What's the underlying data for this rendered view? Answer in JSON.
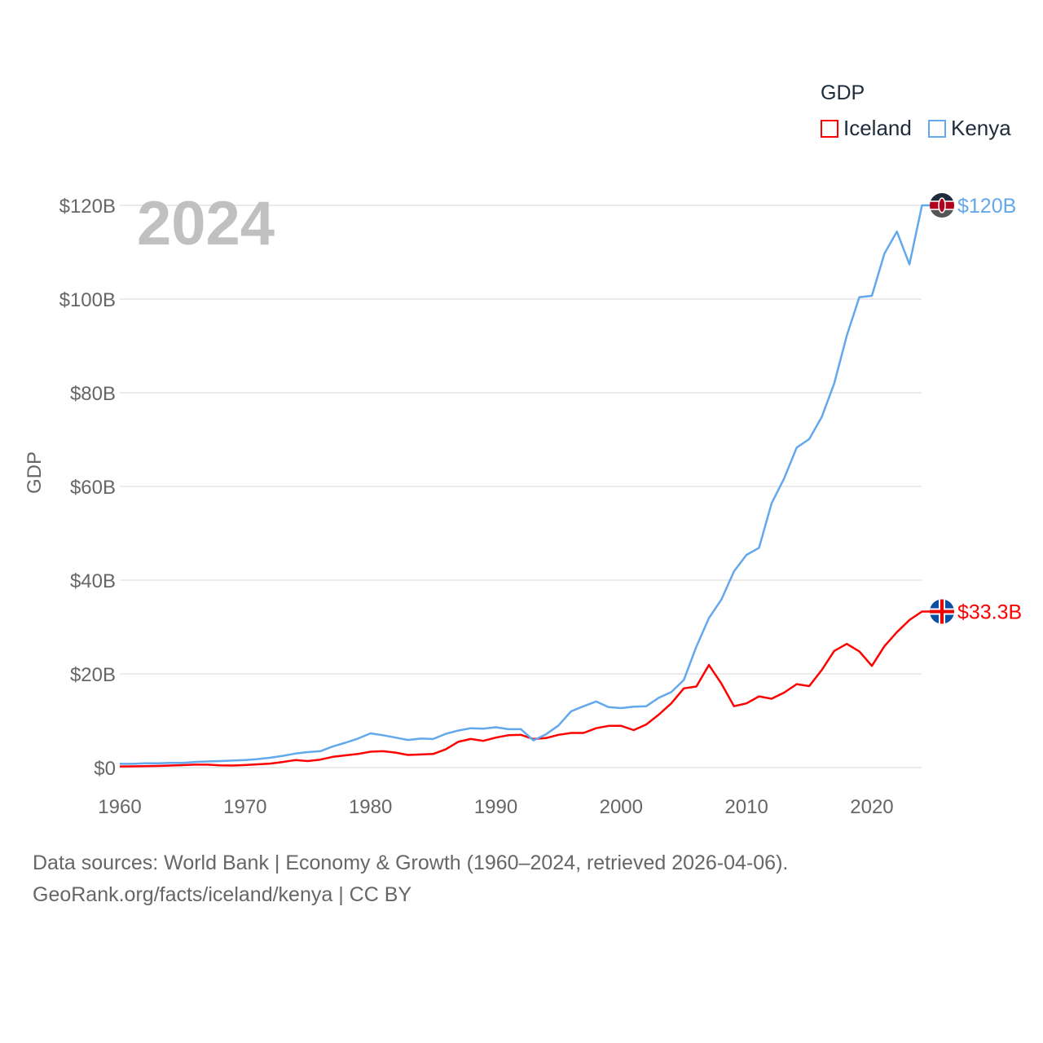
{
  "chart_data": {
    "type": "line",
    "title": "",
    "year_label": "2024",
    "xlabel": "",
    "ylabel": "GDP",
    "xlim": [
      1960,
      2024
    ],
    "ylim": [
      0,
      120
    ],
    "x_ticks": [
      1960,
      1970,
      1980,
      1990,
      2000,
      2010,
      2020
    ],
    "x_tick_labels": [
      "1960",
      "1970",
      "1980",
      "1990",
      "2000",
      "2010",
      "2020"
    ],
    "y_ticks": [
      0,
      20,
      40,
      60,
      80,
      100,
      120
    ],
    "y_tick_labels": [
      "$0",
      "$20B",
      "$40B",
      "$60B",
      "$80B",
      "$100B",
      "$120B"
    ],
    "grid": true,
    "legend": {
      "title": "GDP",
      "placement": "top-right"
    },
    "x": [
      1960,
      1961,
      1962,
      1963,
      1964,
      1965,
      1966,
      1967,
      1968,
      1969,
      1970,
      1971,
      1972,
      1973,
      1974,
      1975,
      1976,
      1977,
      1978,
      1979,
      1980,
      1981,
      1982,
      1983,
      1984,
      1985,
      1986,
      1987,
      1988,
      1989,
      1990,
      1991,
      1992,
      1993,
      1994,
      1995,
      1996,
      1997,
      1998,
      1999,
      2000,
      2001,
      2002,
      2003,
      2004,
      2005,
      2006,
      2007,
      2008,
      2009,
      2010,
      2011,
      2012,
      2013,
      2014,
      2015,
      2016,
      2017,
      2018,
      2019,
      2020,
      2021,
      2022,
      2023,
      2024
    ],
    "series": [
      {
        "name": "Iceland",
        "color": "#ff0000",
        "end_label": "$33.3B",
        "flag": "iceland-flag",
        "values": [
          0.25,
          0.26,
          0.29,
          0.34,
          0.43,
          0.52,
          0.62,
          0.62,
          0.48,
          0.43,
          0.54,
          0.69,
          0.85,
          1.2,
          1.6,
          1.4,
          1.7,
          2.3,
          2.6,
          2.9,
          3.4,
          3.5,
          3.2,
          2.7,
          2.8,
          2.9,
          3.9,
          5.5,
          6.1,
          5.7,
          6.4,
          6.9,
          7.0,
          6.1,
          6.3,
          7.0,
          7.4,
          7.4,
          8.4,
          8.9,
          8.9,
          8.0,
          9.2,
          11.3,
          13.7,
          16.9,
          17.3,
          21.9,
          17.9,
          13.1,
          13.7,
          15.2,
          14.7,
          16.0,
          17.8,
          17.4,
          20.8,
          24.9,
          26.4,
          24.8,
          21.7,
          25.9,
          28.9,
          31.5,
          33.3
        ]
      },
      {
        "name": "Kenya",
        "color": "#63a8ec",
        "end_label": "$120B",
        "flag": "kenya-flag",
        "values": [
          0.8,
          0.8,
          0.9,
          0.9,
          1.0,
          1.0,
          1.2,
          1.3,
          1.4,
          1.5,
          1.6,
          1.8,
          2.1,
          2.5,
          3.0,
          3.3,
          3.5,
          4.5,
          5.3,
          6.2,
          7.3,
          6.9,
          6.4,
          5.9,
          6.2,
          6.1,
          7.2,
          7.9,
          8.4,
          8.3,
          8.6,
          8.2,
          8.2,
          5.8,
          7.1,
          9.0,
          12.0,
          13.1,
          14.1,
          12.9,
          12.7,
          13.0,
          13.1,
          14.9,
          16.1,
          18.7,
          25.8,
          31.9,
          35.9,
          41.9,
          45.4,
          46.9,
          56.4,
          61.7,
          68.3,
          70.1,
          74.8,
          82.0,
          92.2,
          100.4,
          100.7,
          109.7,
          114.4,
          107.4,
          120.0
        ]
      }
    ]
  },
  "footer": {
    "line1": "Data sources: World Bank | Economy & Growth (1960–2024, retrieved 2026-04-06).",
    "line2": "GeoRank.org/facts/iceland/kenya | CC BY"
  }
}
